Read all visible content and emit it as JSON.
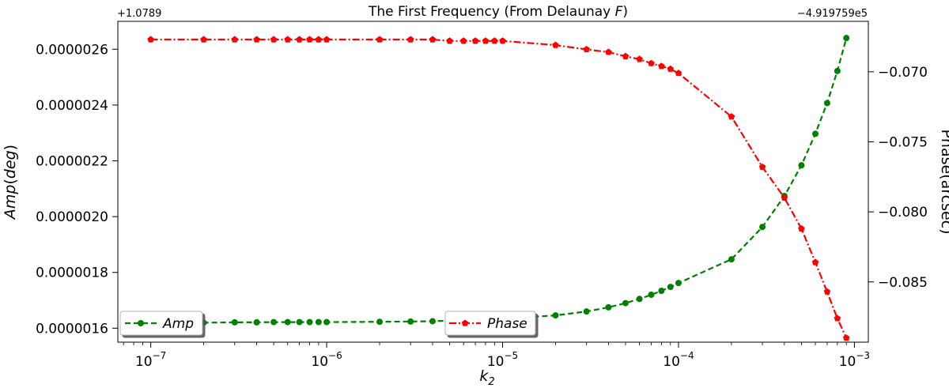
{
  "chart_data": {
    "type": "line",
    "title": "The First Frequency (From Delaunay F)",
    "title_parts": {
      "prefix": "The First Frequency (From Delaunay ",
      "var": "F",
      "suffix": ")"
    },
    "xlabel": {
      "base": "k",
      "sub": "2"
    },
    "xscale": "log",
    "xlim": [
      6.5e-08,
      0.0012
    ],
    "x_ticks": [
      {
        "value": 1e-07,
        "base": "10",
        "exp": "−7"
      },
      {
        "value": 1e-06,
        "base": "10",
        "exp": "−6"
      },
      {
        "value": 1e-05,
        "base": "10",
        "exp": "−5"
      },
      {
        "value": 0.0001,
        "base": "10",
        "exp": "−4"
      },
      {
        "value": 0.001,
        "base": "10",
        "exp": "−3"
      }
    ],
    "y_left": {
      "label_var": "Amp",
      "label_unit": "deg",
      "offset_text": "+1.0789",
      "range": [
        1.55e-06,
        2.7e-06
      ],
      "ticks": [
        {
          "value": 1.6e-06,
          "label": "0.0000016"
        },
        {
          "value": 1.8e-06,
          "label": "0.0000018"
        },
        {
          "value": 2e-06,
          "label": "0.0000020"
        },
        {
          "value": 2.2e-06,
          "label": "0.0000022"
        },
        {
          "value": 2.4e-06,
          "label": "0.0000024"
        },
        {
          "value": 2.6e-06,
          "label": "0.0000026"
        }
      ]
    },
    "y_right": {
      "label": "Phase(arcsec)",
      "offset_text": "−4.919759e5",
      "range": [
        -0.0893,
        -0.0664
      ],
      "ticks": [
        {
          "value": -0.07,
          "label": "−0.070"
        },
        {
          "value": -0.075,
          "label": "−0.075"
        },
        {
          "value": -0.08,
          "label": "−0.080"
        },
        {
          "value": -0.085,
          "label": "−0.085"
        }
      ]
    },
    "x": [
      1e-07,
      2e-07,
      3e-07,
      4e-07,
      5e-07,
      6e-07,
      7e-07,
      8e-07,
      9e-07,
      1e-06,
      2e-06,
      3e-06,
      4e-06,
      5e-06,
      6e-06,
      7e-06,
      8e-06,
      9e-06,
      1e-05,
      2e-05,
      3e-05,
      4e-05,
      5e-05,
      6e-05,
      7e-05,
      8e-05,
      9e-05,
      0.0001,
      0.0002,
      0.0003,
      0.0004,
      0.0005,
      0.0006,
      0.0007,
      0.0008,
      0.0009
    ],
    "series": [
      {
        "name": "Amp",
        "axis": "left",
        "color": "#008000",
        "linestyle": "dashed",
        "marker": "circle",
        "values": [
          1.62e-06,
          1.62e-06,
          1.621e-06,
          1.621e-06,
          1.622e-06,
          1.622e-06,
          1.622e-06,
          1.622e-06,
          1.622e-06,
          1.622e-06,
          1.623e-06,
          1.624e-06,
          1.625e-06,
          1.627e-06,
          1.628e-06,
          1.629e-06,
          1.631e-06,
          1.632e-06,
          1.634e-06,
          1.646e-06,
          1.66e-06,
          1.675e-06,
          1.69e-06,
          1.705e-06,
          1.72e-06,
          1.734e-06,
          1.748e-06,
          1.762e-06,
          1.847e-06,
          1.963e-06,
          2.074e-06,
          2.184e-06,
          2.297e-06,
          2.407e-06,
          2.522e-06,
          2.64e-06
        ]
      },
      {
        "name": "Phase",
        "axis": "right",
        "color": "#ff0000",
        "linestyle": "dashdot",
        "marker": "pentagon",
        "values": [
          -0.0677,
          -0.0677,
          -0.0677,
          -0.0677,
          -0.0677,
          -0.0677,
          -0.0677,
          -0.0677,
          -0.0677,
          -0.0677,
          -0.0677,
          -0.0677,
          -0.0677,
          -0.0678,
          -0.0678,
          -0.0678,
          -0.0678,
          -0.0678,
          -0.0678,
          -0.0681,
          -0.0684,
          -0.0686,
          -0.0689,
          -0.0691,
          -0.0694,
          -0.0696,
          -0.0698,
          -0.0701,
          -0.0732,
          -0.0768,
          -0.079,
          -0.0812,
          -0.0836,
          -0.0857,
          -0.0876,
          -0.089
        ]
      }
    ],
    "legends": [
      {
        "series": "Amp",
        "position": "lower-left"
      },
      {
        "series": "Phase",
        "position": "lower-center"
      }
    ]
  }
}
